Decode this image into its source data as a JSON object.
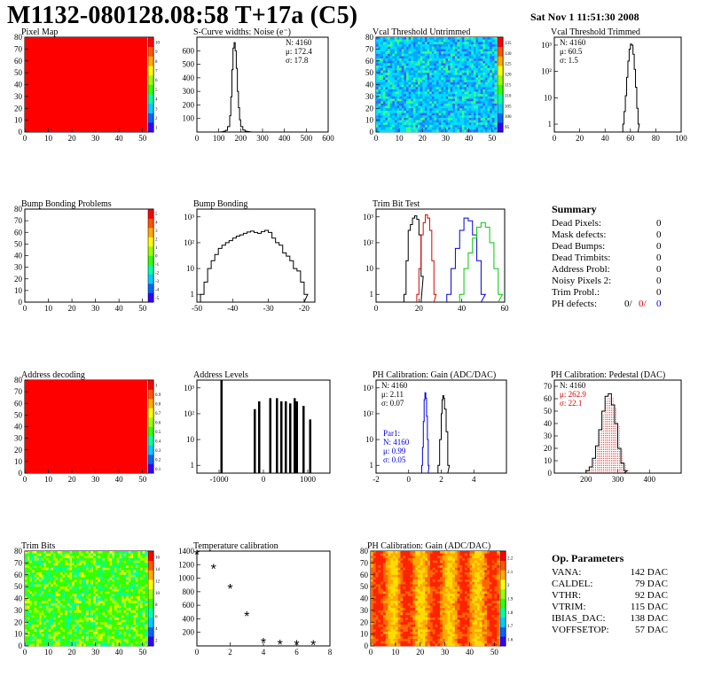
{
  "header": {
    "title": "M1132-080128.08:58 T+17a (C5)",
    "date": "Sat Nov  1 11:51:30 2008"
  },
  "panels": [
    {
      "id": "pixel-map",
      "title": "Pixel Map",
      "kind": "map",
      "xlim": [
        0,
        52
      ],
      "ylim": [
        0,
        80
      ],
      "xticks": [
        "0",
        "10",
        "20",
        "30",
        "40",
        "50"
      ],
      "yticks": [
        "0",
        "10",
        "20",
        "30",
        "40",
        "50",
        "60",
        "70",
        "80"
      ],
      "map": "solid-red",
      "palette": {
        "labels": [
          "1",
          "2",
          "3",
          "4",
          "5",
          "6",
          "7",
          "8",
          "9",
          "10"
        ]
      }
    },
    {
      "id": "scurve-widths",
      "title": "S-Curve widths: Noise (e⁻)",
      "kind": "hist",
      "logy": false,
      "xlim": [
        0,
        600
      ],
      "ylim": [
        0,
        700
      ],
      "xticks": [
        "0",
        "100",
        "200",
        "300",
        "400",
        "500",
        "600"
      ],
      "yticks": [
        "100",
        "200",
        "300",
        "400",
        "500",
        "600"
      ],
      "stats": [
        "N: 4160",
        "μ: 172.4",
        "σ: 17.8"
      ],
      "series": [
        {
          "color": "#000000",
          "x": [
            100,
            110,
            120,
            130,
            140,
            150,
            155,
            160,
            165,
            170,
            175,
            180,
            185,
            190,
            195,
            200,
            210,
            220,
            230,
            240,
            250
          ],
          "y": [
            0,
            2,
            5,
            12,
            40,
            120,
            260,
            460,
            620,
            660,
            600,
            470,
            300,
            180,
            90,
            40,
            15,
            6,
            3,
            1,
            0
          ]
        }
      ]
    },
    {
      "id": "vcal-untrimmed",
      "title": "Vcal Threshold Untrimmed",
      "kind": "map",
      "xlim": [
        0,
        52
      ],
      "ylim": [
        0,
        80
      ],
      "xticks": [
        "0",
        "10",
        "20",
        "30",
        "40",
        "50"
      ],
      "yticks": [
        "0",
        "10",
        "20",
        "30",
        "40",
        "50",
        "60",
        "70",
        "80"
      ],
      "map": "noise-cyan",
      "palette": {
        "labels": [
          "95",
          "100",
          "105",
          "110",
          "115",
          "120",
          "125",
          "130",
          "135"
        ]
      }
    },
    {
      "id": "vcal-trimmed",
      "title": "Vcal Threshold Trimmed",
      "kind": "hist",
      "logy": true,
      "xlim": [
        0,
        100
      ],
      "ylim": [
        0.5,
        2000
      ],
      "xticks": [
        "0",
        "20",
        "40",
        "60",
        "80",
        "100"
      ],
      "yticks": [
        "1",
        "10",
        "10²",
        "10³"
      ],
      "stats": [
        "N: 4160",
        "μ: 60.5",
        "σ:  1.5"
      ],
      "series": [
        {
          "color": "#000000",
          "x": [
            54,
            55,
            56,
            57,
            58,
            59,
            60,
            61,
            62,
            63,
            64,
            65,
            66
          ],
          "y": [
            1,
            3,
            12,
            60,
            250,
            700,
            1100,
            1000,
            450,
            120,
            25,
            4,
            1
          ]
        }
      ]
    },
    {
      "id": "bump-problems",
      "title": "Bump Bonding Problems",
      "kind": "map",
      "xlim": [
        0,
        52
      ],
      "ylim": [
        0,
        80
      ],
      "xticks": [
        "0",
        "10",
        "20",
        "30",
        "40",
        "50"
      ],
      "yticks": [
        "0",
        "10",
        "20",
        "30",
        "40",
        "50",
        "60",
        "70",
        "80"
      ],
      "map": "empty",
      "palette": {
        "labels": [
          "-5",
          "-4",
          "-3",
          "-2",
          "-1",
          "0",
          "1",
          "2",
          "3",
          "4",
          "5"
        ]
      }
    },
    {
      "id": "bump-bonding",
      "title": "Bump Bonding",
      "kind": "hist",
      "logy": true,
      "xlim": [
        -50,
        -17
      ],
      "ylim": [
        0.5,
        2000
      ],
      "xticks": [
        "-50",
        "-40",
        "-30",
        "-20"
      ],
      "yticks": [
        "1",
        "10",
        "10²",
        "10³"
      ],
      "stats": [],
      "series": [
        {
          "color": "#000000",
          "x": [
            -49,
            -48,
            -47,
            -46,
            -45,
            -44,
            -43,
            -42,
            -41,
            -40,
            -39,
            -38,
            -37,
            -36,
            -35,
            -34,
            -33,
            -32,
            -31,
            -30,
            -29,
            -28,
            -27,
            -26,
            -25,
            -24,
            -23,
            -22,
            -21,
            -20
          ],
          "y": [
            1,
            3,
            10,
            20,
            35,
            60,
            80,
            100,
            120,
            150,
            180,
            200,
            230,
            260,
            280,
            250,
            230,
            270,
            300,
            250,
            150,
            100,
            80,
            40,
            30,
            20,
            10,
            8,
            3,
            1
          ]
        }
      ]
    },
    {
      "id": "trim-bit-test",
      "title": "Trim Bit Test",
      "kind": "hist",
      "logy": true,
      "xlim": [
        0,
        60
      ],
      "ylim": [
        0.5,
        2000
      ],
      "xticks": [
        "0",
        "20",
        "40",
        "60"
      ],
      "yticks": [
        "1",
        "10",
        "10²",
        "10³"
      ],
      "stats": [],
      "series": [
        {
          "color": "#000000",
          "x": [
            13,
            14,
            15,
            16,
            17,
            18,
            19,
            20,
            21
          ],
          "y": [
            1,
            20,
            300,
            500,
            900,
            1100,
            800,
            200,
            5
          ]
        },
        {
          "color": "#dd0000",
          "x": [
            19,
            20,
            21,
            22,
            23,
            24,
            25,
            26,
            27
          ],
          "y": [
            1,
            10,
            200,
            600,
            1200,
            900,
            300,
            20,
            1
          ]
        },
        {
          "color": "#0000dd",
          "x": [
            33,
            35,
            37,
            39,
            41,
            43,
            45,
            47,
            49
          ],
          "y": [
            1,
            10,
            60,
            300,
            900,
            700,
            200,
            20,
            1
          ]
        },
        {
          "color": "#00cc00",
          "x": [
            39,
            41,
            43,
            45,
            47,
            49,
            51,
            53,
            55,
            57
          ],
          "y": [
            1,
            10,
            40,
            150,
            400,
            600,
            400,
            100,
            10,
            1
          ]
        }
      ]
    },
    {
      "id": "address-decoding",
      "title": "Address decoding",
      "kind": "map",
      "xlim": [
        0,
        52
      ],
      "ylim": [
        0,
        80
      ],
      "xticks": [
        "0",
        "10",
        "20",
        "30",
        "40",
        "50"
      ],
      "yticks": [
        "0",
        "10",
        "20",
        "30",
        "40",
        "50",
        "60",
        "70",
        "80"
      ],
      "map": "solid-red",
      "palette": {
        "labels": [
          "0.1",
          "0.2",
          "0.3",
          "0.4",
          "0.5",
          "0.6",
          "0.7",
          "0.8",
          "0.9",
          "1"
        ]
      }
    },
    {
      "id": "address-levels",
      "title": "Address Levels",
      "kind": "hist",
      "logy": true,
      "xlim": [
        -1500,
        1500
      ],
      "ylim": [
        0.5,
        2000
      ],
      "xticks": [
        "-1000",
        "0",
        "1000"
      ],
      "yticks": [
        "1",
        "10",
        "10²",
        "10³"
      ],
      "stats": [],
      "series": [
        {
          "color": "#000000",
          "x": [
            -950,
            -200,
            -100,
            150,
            300,
            400,
            500,
            600,
            700,
            750,
            900,
            1050
          ],
          "y": [
            2000,
            150,
            300,
            400,
            400,
            300,
            300,
            250,
            400,
            300,
            200,
            60
          ],
          "spikes": true
        }
      ]
    },
    {
      "id": "ph-gain",
      "title": "PH Calibration: Gain (ADC/DAC)",
      "kind": "hist",
      "logy": true,
      "xlim": [
        -2,
        6
      ],
      "ylim": [
        0.5,
        2000
      ],
      "xticks": [
        "-2",
        "0",
        "2",
        "4"
      ],
      "yticks": [
        "1",
        "10",
        "10²",
        "10³"
      ],
      "stats": [
        "N: 4160",
        "μ: 2.11",
        "σ: 0.07"
      ],
      "stats2": [
        "Par1:",
        "N: 4160",
        "μ: 0.99",
        "σ: 0.05"
      ],
      "series": [
        {
          "color": "#000000",
          "x": [
            1.8,
            1.9,
            2.0,
            2.05,
            2.1,
            2.15,
            2.2,
            2.3,
            2.4
          ],
          "y": [
            1,
            10,
            100,
            350,
            500,
            400,
            150,
            20,
            1
          ]
        },
        {
          "color": "#0000dd",
          "x": [
            0.8,
            0.85,
            0.9,
            0.95,
            1.0,
            1.05,
            1.1,
            1.15,
            1.2
          ],
          "y": [
            1,
            5,
            50,
            350,
            650,
            400,
            80,
            10,
            1
          ]
        }
      ]
    },
    {
      "id": "ph-pedestal",
      "title": "PH Calibration: Pedestal (DAC)",
      "kind": "hist",
      "logy": false,
      "xlim": [
        100,
        500
      ],
      "ylim": [
        0,
        75
      ],
      "xticks": [
        "200",
        "300",
        "400"
      ],
      "yticks": [
        "0",
        "10",
        "20",
        "30",
        "40",
        "50",
        "60",
        "70"
      ],
      "stats": [
        "N: 4160",
        "μ: 262.9",
        "σ: 22.1"
      ],
      "series": [
        {
          "color": "#000000",
          "x": [
            200,
            210,
            220,
            230,
            240,
            250,
            260,
            270,
            280,
            290,
            300,
            310,
            320
          ],
          "y": [
            2,
            5,
            12,
            22,
            35,
            50,
            62,
            64,
            55,
            40,
            20,
            8,
            2
          ],
          "fit": true
        }
      ]
    },
    {
      "id": "trim-bits",
      "title": "Trim Bits",
      "kind": "map",
      "xlim": [
        0,
        52
      ],
      "ylim": [
        0,
        80
      ],
      "xticks": [
        "0",
        "10",
        "20",
        "30",
        "40",
        "50"
      ],
      "yticks": [
        "0",
        "10",
        "20",
        "30",
        "40",
        "50",
        "60",
        "70",
        "80"
      ],
      "map": "noise-green",
      "palette": {
        "labels": [
          "2",
          "4",
          "6",
          "8",
          "10",
          "12",
          "14",
          "16"
        ]
      }
    },
    {
      "id": "temperature-calibration",
      "title": "Temperature calibration",
      "kind": "scatter",
      "xlim": [
        0,
        8
      ],
      "ylim": [
        0,
        1400
      ],
      "xticks": [
        "0",
        "2",
        "4",
        "6",
        "8"
      ],
      "yticks": [
        "200",
        "400",
        "600",
        "800",
        "1000",
        "1200",
        "1400"
      ],
      "stats": [],
      "points": {
        "x": [
          0,
          1,
          2,
          3,
          4,
          5,
          6,
          7
        ],
        "y": [
          1340,
          1130,
          840,
          430,
          40,
          10,
          5,
          5
        ]
      }
    },
    {
      "id": "ph-gain-map",
      "title": "PH Calibration: Gain (ADC/DAC)",
      "kind": "map",
      "xlim": [
        0,
        52
      ],
      "ylim": [
        0,
        80
      ],
      "xticks": [
        "0",
        "10",
        "20",
        "30",
        "40",
        "50"
      ],
      "yticks": [
        "0",
        "10",
        "20",
        "30",
        "40",
        "50",
        "60",
        "70",
        "80"
      ],
      "map": "noise-warm",
      "palette": {
        "labels": [
          "1.6",
          "1.7",
          "1.8",
          "1.9",
          "2",
          "2.1",
          "2.2"
        ]
      }
    }
  ],
  "summary": {
    "title": "Summary",
    "rows": [
      {
        "label": "Dead Pixels:",
        "value": "0"
      },
      {
        "label": "Mask defects:",
        "value": "0"
      },
      {
        "label": "Dead Bumps:",
        "value": "0"
      },
      {
        "label": "Dead Trimbits:",
        "value": "0"
      },
      {
        "label": "Address Probl:",
        "value": "0"
      },
      {
        "label": "Noisy Pixels 2:",
        "value": "0"
      },
      {
        "label": "Trim Probl.:",
        "value": "0"
      }
    ],
    "ph_label": "PH defects:",
    "ph_values": [
      "0/",
      "0/",
      "0"
    ]
  },
  "op_params": {
    "title": "Op. Parameters",
    "rows": [
      {
        "label": "VANA:",
        "value": "142 DAC"
      },
      {
        "label": "CALDEL:",
        "value": "79 DAC"
      },
      {
        "label": "VTHR:",
        "value": "92 DAC"
      },
      {
        "label": "VTRIM:",
        "value": "115 DAC"
      },
      {
        "label": "IBIAS_DAC:",
        "value": "138 DAC"
      },
      {
        "label": "VOFFSETOP:",
        "value": "57 DAC"
      }
    ]
  },
  "colors": {
    "red": "#ff0000",
    "blue": "#0000dd",
    "green": "#00cc00"
  },
  "chart_data": [
    {
      "type": "heatmap",
      "title": "Pixel Map",
      "xlim": [
        0,
        52
      ],
      "ylim": [
        0,
        80
      ],
      "note": "uniform red"
    },
    {
      "type": "bar",
      "title": "S-Curve widths: Noise (e⁻)",
      "stats": {
        "N": 4160,
        "mean": 172.4,
        "sigma": 17.8
      }
    },
    {
      "type": "heatmap",
      "title": "Vcal Threshold Untrimmed",
      "zlim": [
        95,
        135
      ]
    },
    {
      "type": "bar",
      "title": "Vcal Threshold Trimmed",
      "log_y": true,
      "stats": {
        "N": 4160,
        "mean": 60.5,
        "sigma": 1.5
      }
    },
    {
      "type": "heatmap",
      "title": "Bump Bonding Problems",
      "zlim": [
        -5,
        5
      ]
    },
    {
      "type": "bar",
      "title": "Bump Bonding",
      "log_y": true
    },
    {
      "type": "line",
      "title": "Trim Bit Test",
      "log_y": true
    },
    {
      "type": "heatmap",
      "title": "Address decoding",
      "zlim": [
        0,
        1
      ]
    },
    {
      "type": "bar",
      "title": "Address Levels",
      "log_y": true
    },
    {
      "type": "bar",
      "title": "PH Calibration: Gain (ADC/DAC)",
      "log_y": true,
      "stats": {
        "N": 4160,
        "mean": 2.11,
        "sigma": 0.07
      },
      "par1": {
        "N": 4160,
        "mean": 0.99,
        "sigma": 0.05
      }
    },
    {
      "type": "bar",
      "title": "PH Calibration: Pedestal (DAC)",
      "stats": {
        "N": 4160,
        "mean": 262.9,
        "sigma": 22.1
      }
    },
    {
      "type": "heatmap",
      "title": "Trim Bits",
      "zlim": [
        0,
        16
      ]
    },
    {
      "type": "scatter",
      "title": "Temperature calibration",
      "x": [
        0,
        1,
        2,
        3,
        4,
        5,
        6,
        7
      ],
      "y": [
        1340,
        1130,
        840,
        430,
        40,
        10,
        5,
        5
      ]
    },
    {
      "type": "heatmap",
      "title": "PH Calibration: Gain (ADC/DAC)",
      "zlim": [
        1.6,
        2.25
      ]
    }
  ]
}
